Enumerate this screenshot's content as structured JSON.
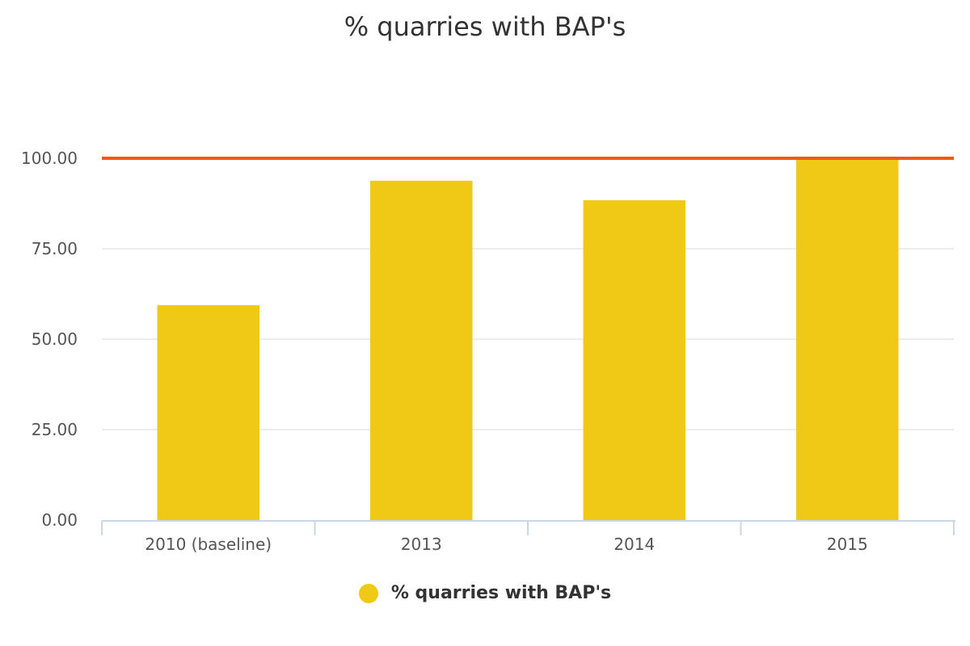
{
  "chart_data": {
    "type": "bar",
    "title": "% quarries with BAP's",
    "categories": [
      "2010 (baseline)",
      "2013",
      "2014",
      "2015"
    ],
    "series": [
      {
        "name": "% quarries with BAP's",
        "values": [
          59.4,
          93.8,
          88.4,
          100
        ],
        "color": "#f0c917"
      }
    ],
    "target_line": {
      "value": 100,
      "color": "#f05a14"
    },
    "ylim": [
      0,
      100
    ],
    "yticks": [
      "0.00",
      "25.00",
      "50.00",
      "75.00",
      "100.00"
    ],
    "xlabel": "",
    "ylabel": "",
    "grid": true,
    "legend_position": "bottom"
  }
}
